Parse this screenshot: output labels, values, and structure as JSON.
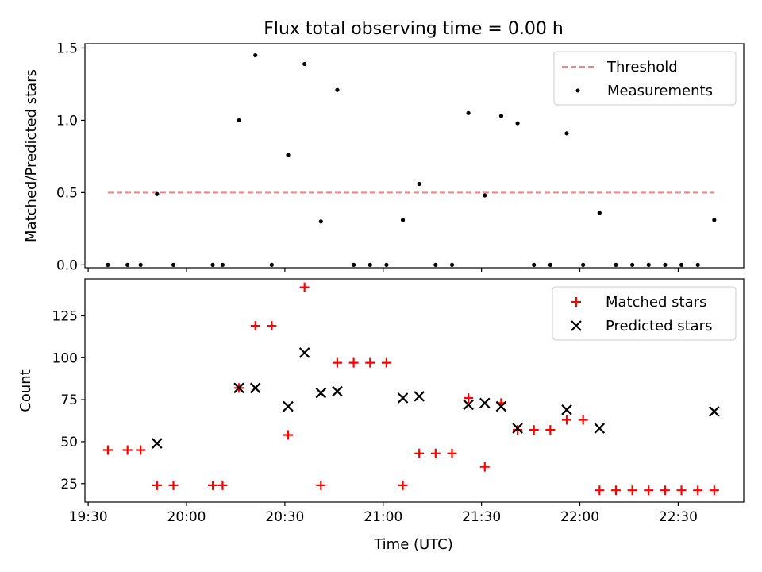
{
  "chart_data": [
    {
      "type": "scatter",
      "title": "Flux total observing time = 0.00 h",
      "xlabel": "",
      "ylabel": "Matched/Predicted stars",
      "ylim": [
        0,
        1.5
      ],
      "yticks": [
        "0.0",
        "0.5",
        "1.0",
        "1.5"
      ],
      "x_tick_labels": [],
      "legend_position": "upper right",
      "legend": [
        "Threshold",
        "Measurements"
      ],
      "threshold": {
        "name": "Threshold",
        "value": 0.5,
        "x_start": "19:36",
        "x_end": "22:41",
        "color": "#ff7f7f",
        "style": "dashed"
      },
      "series": [
        {
          "name": "Measurements",
          "color": "#000000",
          "marker": "dot",
          "points": [
            {
              "x": "19:36",
              "y": 0.0
            },
            {
              "x": "19:42",
              "y": 0.0
            },
            {
              "x": "19:46",
              "y": 0.0
            },
            {
              "x": "19:51",
              "y": 0.49
            },
            {
              "x": "19:56",
              "y": 0.0
            },
            {
              "x": "20:08",
              "y": 0.0
            },
            {
              "x": "20:11",
              "y": 0.0
            },
            {
              "x": "20:16",
              "y": 1.0
            },
            {
              "x": "20:21",
              "y": 1.45
            },
            {
              "x": "20:26",
              "y": 0.0
            },
            {
              "x": "20:31",
              "y": 0.76
            },
            {
              "x": "20:36",
              "y": 1.39
            },
            {
              "x": "20:41",
              "y": 0.3
            },
            {
              "x": "20:46",
              "y": 1.21
            },
            {
              "x": "20:51",
              "y": 0.0
            },
            {
              "x": "20:56",
              "y": 0.0
            },
            {
              "x": "21:01",
              "y": 0.0
            },
            {
              "x": "21:06",
              "y": 0.31
            },
            {
              "x": "21:11",
              "y": 0.56
            },
            {
              "x": "21:16",
              "y": 0.0
            },
            {
              "x": "21:21",
              "y": 0.0
            },
            {
              "x": "21:26",
              "y": 1.05
            },
            {
              "x": "21:31",
              "y": 0.48
            },
            {
              "x": "21:36",
              "y": 1.03
            },
            {
              "x": "21:41",
              "y": 0.98
            },
            {
              "x": "21:46",
              "y": 0.0
            },
            {
              "x": "21:51",
              "y": 0.0
            },
            {
              "x": "21:56",
              "y": 0.91
            },
            {
              "x": "22:01",
              "y": 0.0
            },
            {
              "x": "22:06",
              "y": 0.36
            },
            {
              "x": "22:11",
              "y": 0.0
            },
            {
              "x": "22:16",
              "y": 0.0
            },
            {
              "x": "22:21",
              "y": 0.0
            },
            {
              "x": "22:26",
              "y": 0.0
            },
            {
              "x": "22:31",
              "y": 0.0
            },
            {
              "x": "22:36",
              "y": 0.0
            },
            {
              "x": "22:41",
              "y": 0.31
            }
          ]
        }
      ]
    },
    {
      "type": "scatter",
      "title": "",
      "xlabel": "Time (UTC)",
      "ylabel": "Count",
      "xlim": [
        "19:29",
        "22:50"
      ],
      "ylim": [
        14,
        147
      ],
      "yticks": [
        "25",
        "50",
        "75",
        "100",
        "125"
      ],
      "x_tick_labels": [
        "19:30",
        "20:00",
        "20:30",
        "21:00",
        "21:30",
        "22:00",
        "22:30"
      ],
      "legend_position": "upper right",
      "legend": [
        "Matched stars",
        "Predicted stars"
      ],
      "series": [
        {
          "name": "Matched stars",
          "color": "#ff0000",
          "marker": "plus",
          "points": [
            {
              "x": "19:36",
              "y": 45
            },
            {
              "x": "19:42",
              "y": 45
            },
            {
              "x": "19:46",
              "y": 45
            },
            {
              "x": "19:51",
              "y": 24
            },
            {
              "x": "19:56",
              "y": 24
            },
            {
              "x": "20:08",
              "y": 24
            },
            {
              "x": "20:11",
              "y": 24
            },
            {
              "x": "20:16",
              "y": 82
            },
            {
              "x": "20:21",
              "y": 119
            },
            {
              "x": "20:26",
              "y": 119
            },
            {
              "x": "20:31",
              "y": 54
            },
            {
              "x": "20:36",
              "y": 142
            },
            {
              "x": "20:41",
              "y": 24
            },
            {
              "x": "20:46",
              "y": 97
            },
            {
              "x": "20:51",
              "y": 97
            },
            {
              "x": "20:56",
              "y": 97
            },
            {
              "x": "21:01",
              "y": 97
            },
            {
              "x": "21:06",
              "y": 24
            },
            {
              "x": "21:11",
              "y": 43
            },
            {
              "x": "21:16",
              "y": 43
            },
            {
              "x": "21:21",
              "y": 43
            },
            {
              "x": "21:26",
              "y": 76
            },
            {
              "x": "21:31",
              "y": 35
            },
            {
              "x": "21:36",
              "y": 73
            },
            {
              "x": "21:41",
              "y": 57
            },
            {
              "x": "21:46",
              "y": 57
            },
            {
              "x": "21:51",
              "y": 57
            },
            {
              "x": "21:56",
              "y": 63
            },
            {
              "x": "22:01",
              "y": 63
            },
            {
              "x": "22:06",
              "y": 21
            },
            {
              "x": "22:11",
              "y": 21
            },
            {
              "x": "22:16",
              "y": 21
            },
            {
              "x": "22:21",
              "y": 21
            },
            {
              "x": "22:26",
              "y": 21
            },
            {
              "x": "22:31",
              "y": 21
            },
            {
              "x": "22:36",
              "y": 21
            },
            {
              "x": "22:41",
              "y": 21
            }
          ]
        },
        {
          "name": "Predicted stars",
          "color": "#000000",
          "marker": "x",
          "points": [
            {
              "x": "19:51",
              "y": 49
            },
            {
              "x": "20:16",
              "y": 82
            },
            {
              "x": "20:21",
              "y": 82
            },
            {
              "x": "20:31",
              "y": 71
            },
            {
              "x": "20:36",
              "y": 103
            },
            {
              "x": "20:41",
              "y": 79
            },
            {
              "x": "20:46",
              "y": 80
            },
            {
              "x": "21:06",
              "y": 76
            },
            {
              "x": "21:11",
              "y": 77
            },
            {
              "x": "21:26",
              "y": 72
            },
            {
              "x": "21:31",
              "y": 73
            },
            {
              "x": "21:36",
              "y": 71
            },
            {
              "x": "21:41",
              "y": 58
            },
            {
              "x": "21:56",
              "y": 69
            },
            {
              "x": "22:06",
              "y": 58
            },
            {
              "x": "22:41",
              "y": 68
            }
          ]
        }
      ]
    }
  ]
}
